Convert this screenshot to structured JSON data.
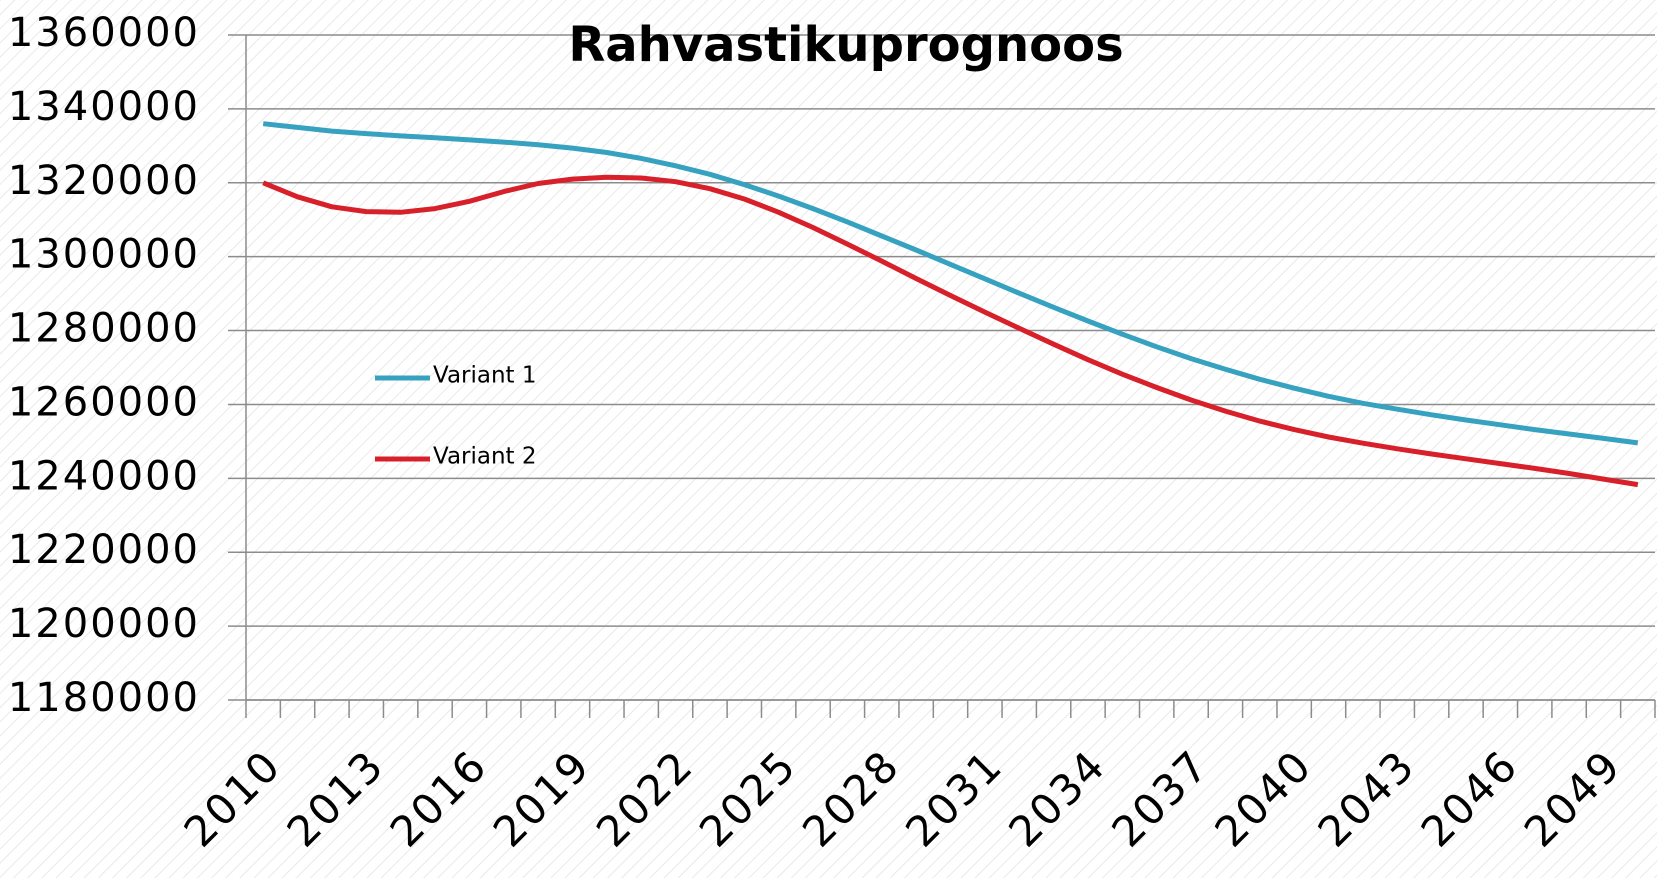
{
  "chart_data": {
    "type": "line",
    "title": "Rahvastikuprognoos",
    "categories": [
      "2010",
      null,
      null,
      "2013",
      null,
      null,
      "2016",
      null,
      null,
      "2019",
      null,
      null,
      "2022",
      null,
      null,
      "2025",
      null,
      null,
      "2028",
      null,
      null,
      "2031",
      null,
      null,
      "2034",
      null,
      null,
      "2037",
      null,
      null,
      "2040",
      null,
      null,
      "2043",
      null,
      null,
      "2046",
      null,
      null,
      "2049",
      null
    ],
    "series": [
      {
        "name": "Variant 1",
        "color": "#36a2bf",
        "values": [
          1336000,
          1335000,
          1334000,
          1333300,
          1332700,
          1332200,
          1331600,
          1331000,
          1330300,
          1329400,
          1328200,
          1326600,
          1324600,
          1322300,
          1319500,
          1316400,
          1313000,
          1309400,
          1305600,
          1301800,
          1297900,
          1294000,
          1290100,
          1286300,
          1282600,
          1279000,
          1275600,
          1272400,
          1269500,
          1266800,
          1264400,
          1262200,
          1260300,
          1258700,
          1257200,
          1255800,
          1254500,
          1253200,
          1252000,
          1250800,
          1249600
        ]
      },
      {
        "name": "Variant 2",
        "color": "#d7202a",
        "values": [
          1320000,
          1316200,
          1313500,
          1312200,
          1312000,
          1313000,
          1315000,
          1317600,
          1319800,
          1321000,
          1321500,
          1321300,
          1320300,
          1318400,
          1315600,
          1312000,
          1307900,
          1303400,
          1298800,
          1294100,
          1289500,
          1285000,
          1280600,
          1276300,
          1272100,
          1268200,
          1264600,
          1261200,
          1258200,
          1255500,
          1253200,
          1251200,
          1249500,
          1248000,
          1246600,
          1245300,
          1244000,
          1242700,
          1241300,
          1239800,
          1238300
        ]
      }
    ],
    "ylim": [
      1180000,
      1360000
    ],
    "yticks": [
      1180000,
      1200000,
      1220000,
      1240000,
      1260000,
      1280000,
      1300000,
      1320000,
      1340000,
      1360000
    ],
    "grid": true,
    "legend": "left"
  }
}
